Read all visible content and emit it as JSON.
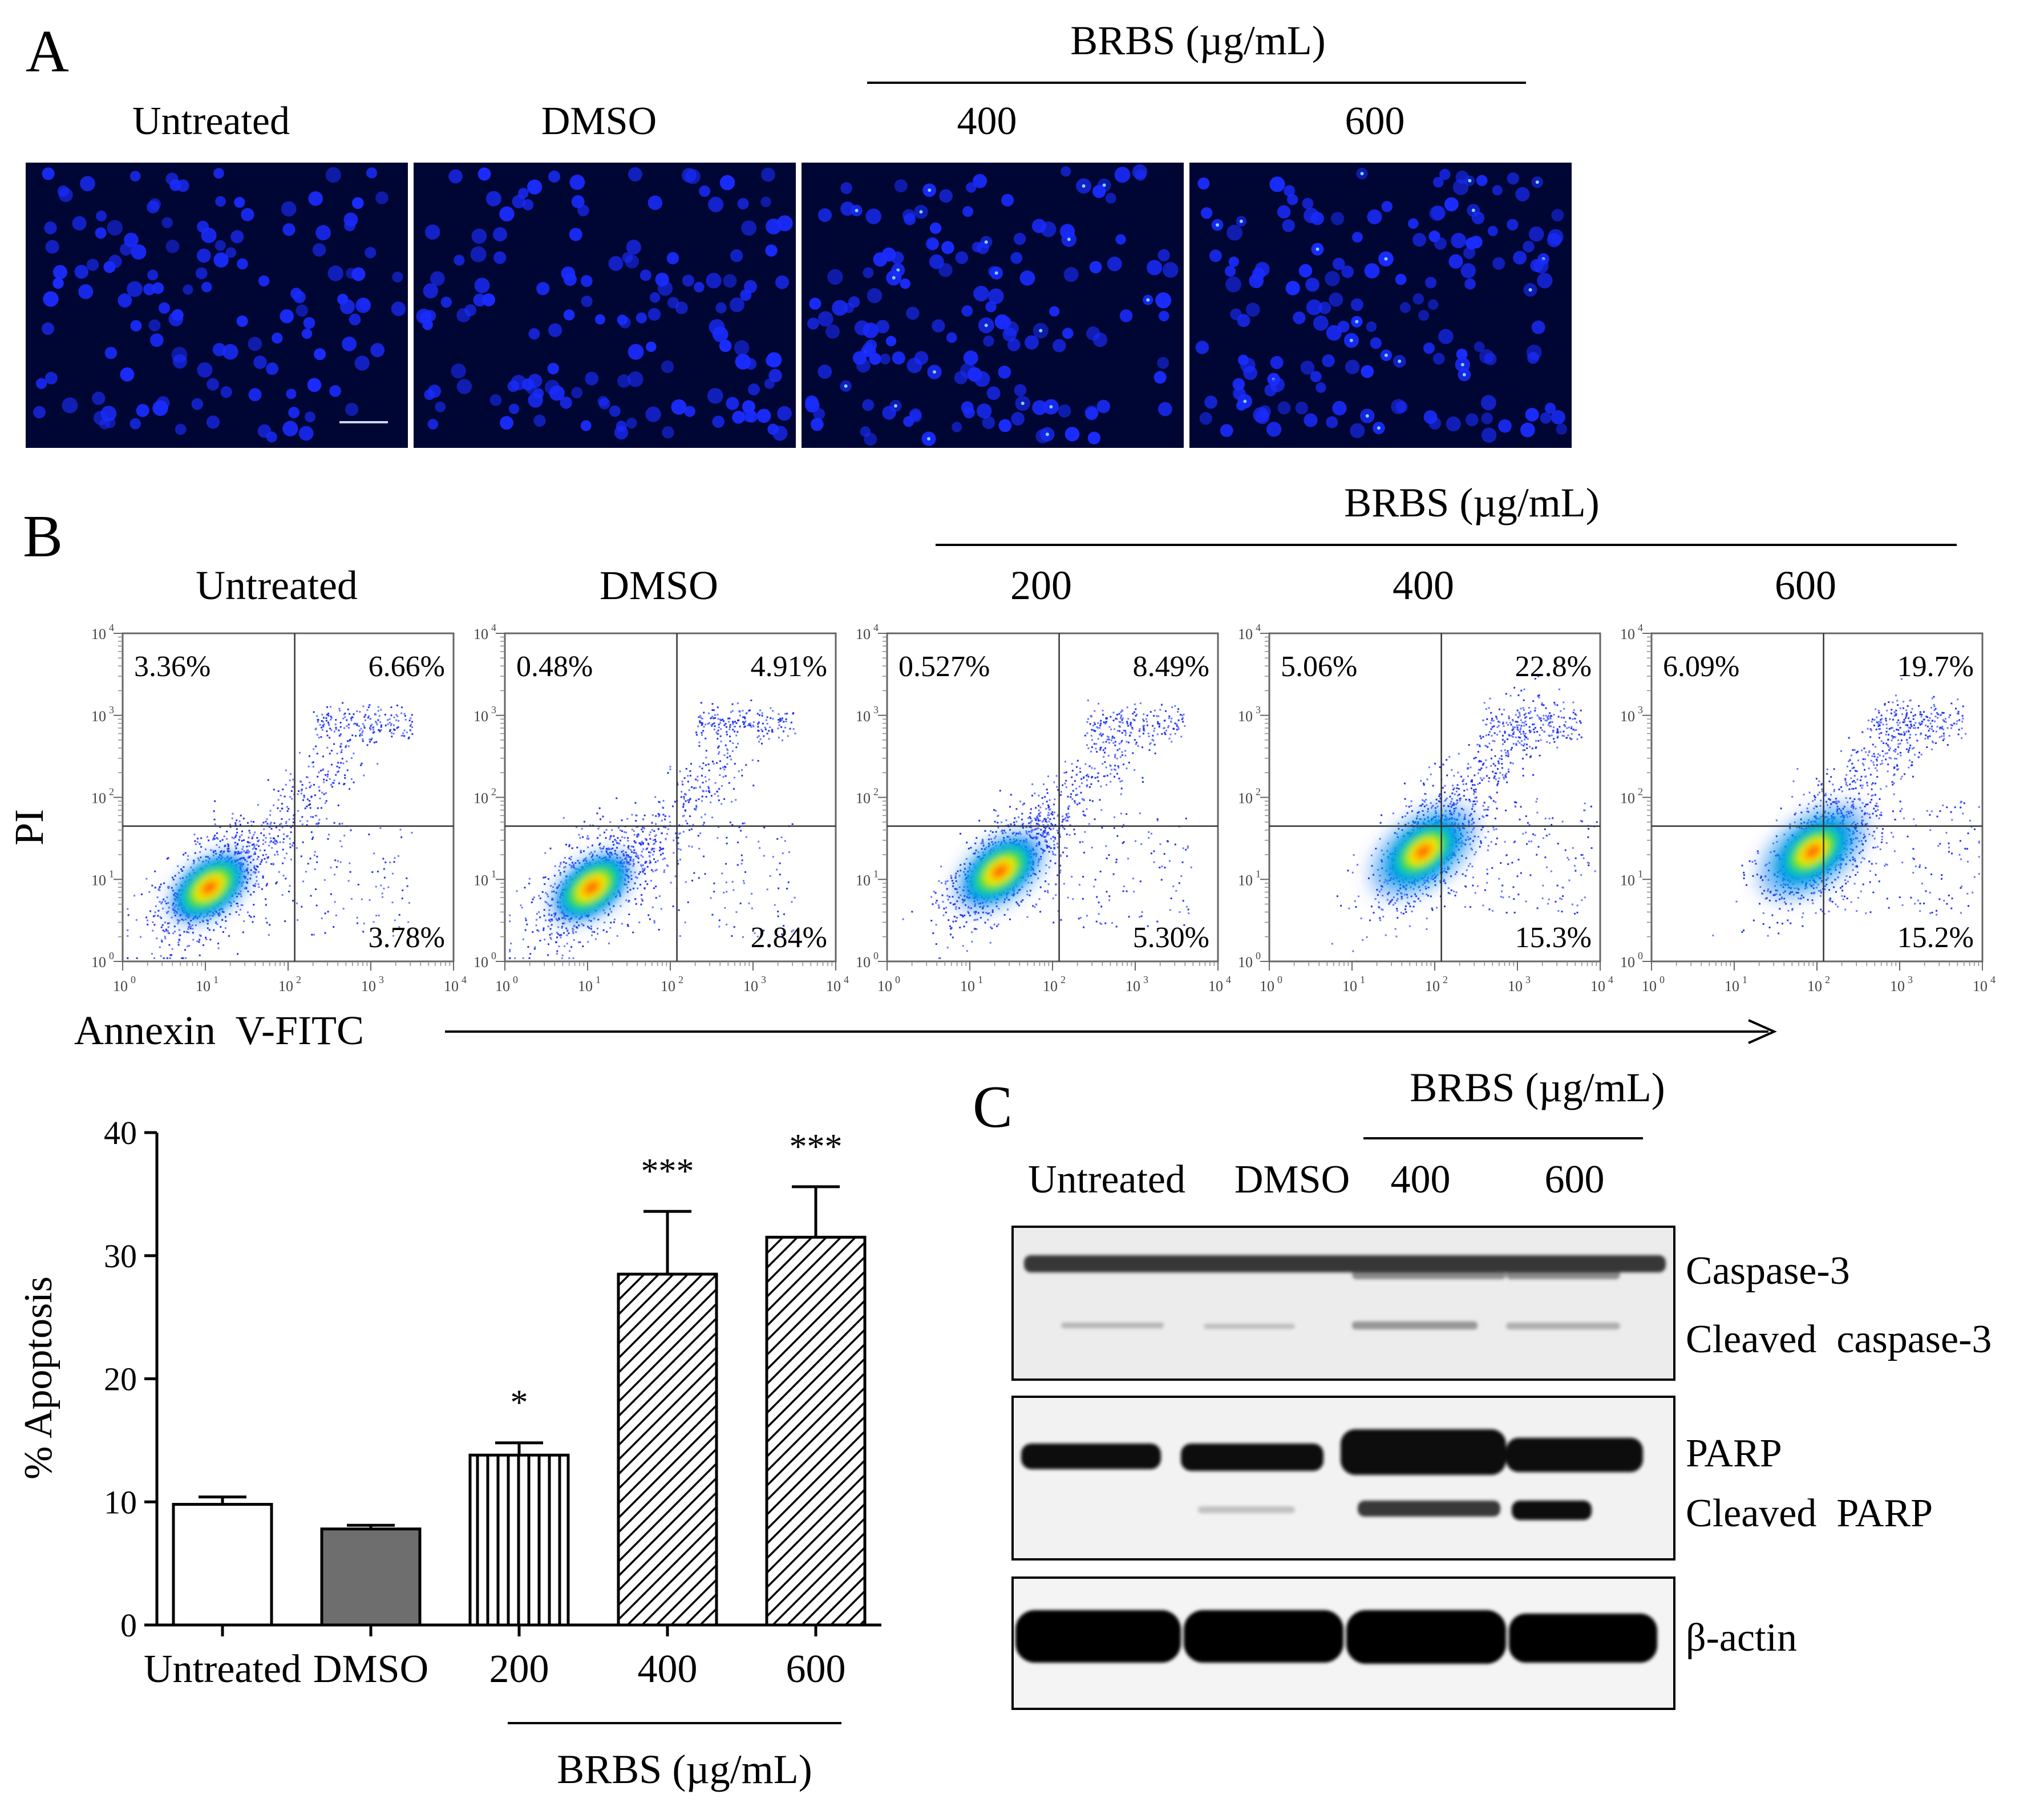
{
  "panel_a": {
    "letter": "A",
    "group_label": "BRBS (µg/mL)",
    "columns": [
      "Untreated",
      "DMSO",
      "400",
      "600"
    ],
    "stain_color": "#1a2cff",
    "background_color": "#000633"
  },
  "panel_b": {
    "letter": "B",
    "group_label": "BRBS (µg/mL)",
    "columns": [
      "Untreated",
      "DMSO",
      "200",
      "400",
      "600"
    ],
    "y_axis_label": "PI",
    "x_axis_label": "Annexin  V-FITC",
    "quadrants": [
      {
        "ul": "3.36%",
        "ur": "6.66%",
        "lr": "3.78%"
      },
      {
        "ul": "0.48%",
        "ur": "4.91%",
        "lr": "2.84%"
      },
      {
        "ul": "0.527%",
        "ur": "8.49%",
        "lr": "5.30%"
      },
      {
        "ul": "5.06%",
        "ur": "22.8%",
        "lr": "15.3%"
      },
      {
        "ul": "6.09%",
        "ur": "19.7%",
        "lr": "15.2%"
      }
    ]
  },
  "chart_data": {
    "type": "bar",
    "categories": [
      "Untreated",
      "DMSO",
      "200",
      "400",
      "600"
    ],
    "values": [
      9.8,
      7.8,
      13.8,
      28.5,
      31.5
    ],
    "errors": [
      0.6,
      0.3,
      1.0,
      5.1,
      4.1
    ],
    "significance": [
      "",
      "",
      "*",
      "***",
      "***"
    ],
    "ylabel": "% Apoptosis",
    "ylim": [
      0,
      40
    ],
    "yticks": [
      0,
      10,
      20,
      30,
      40
    ],
    "group_label": "BRBS (µg/mL)",
    "fills": [
      "white",
      "gray",
      "vertical-hatch",
      "diagonal-hatch",
      "diagonal-hatch"
    ],
    "grid": false
  },
  "panel_c": {
    "letter": "C",
    "group_label": "BRBS (µg/mL)",
    "lanes": [
      "Untreated",
      "DMSO",
      "400",
      "600"
    ],
    "bands": {
      "caspase3": "Caspase-3",
      "cleaved_caspase3": "Cleaved  caspase-3",
      "parp": "PARP",
      "cleaved_parp": "Cleaved  PARP",
      "actin": "β-actin"
    }
  }
}
